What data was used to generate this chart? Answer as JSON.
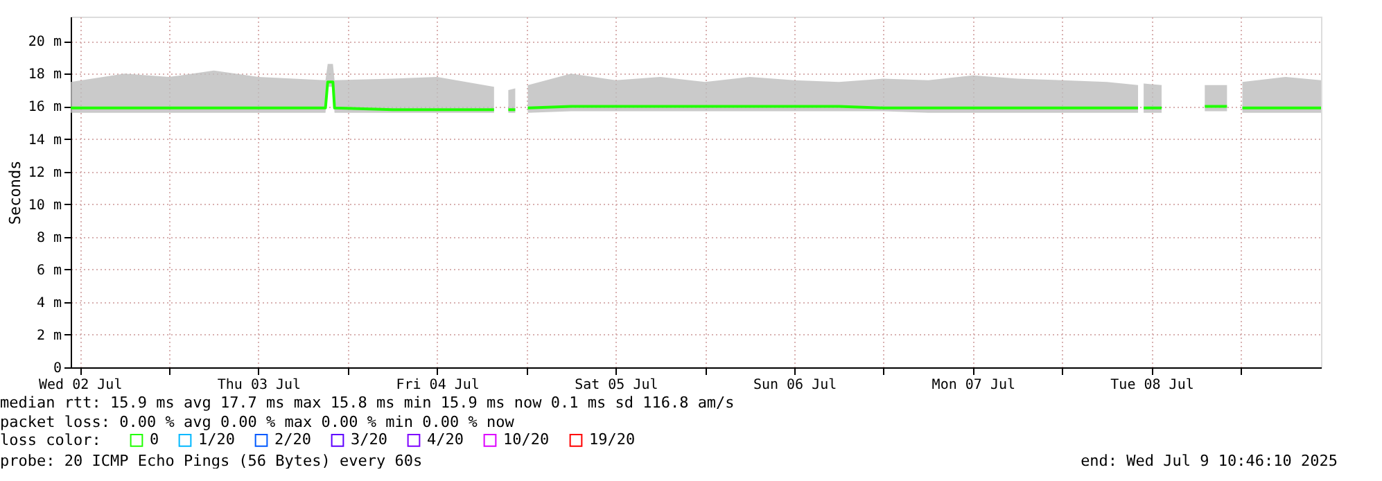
{
  "chart_data": {
    "type": "line",
    "ylabel": "Seconds",
    "xlim": [
      "2025-07-02T10:46",
      "2025-07-09T10:46"
    ],
    "xticks": [
      {
        "value": "2025-07-02T12:00",
        "label": "Wed 02 Jul"
      },
      {
        "value": "2025-07-03T00:00",
        "label": null
      },
      {
        "value": "2025-07-03T12:00",
        "label": "Thu 03 Jul"
      },
      {
        "value": "2025-07-04T00:00",
        "label": null
      },
      {
        "value": "2025-07-04T12:00",
        "label": "Fri 04 Jul"
      },
      {
        "value": "2025-07-05T00:00",
        "label": null
      },
      {
        "value": "2025-07-05T12:00",
        "label": "Sat 05 Jul"
      },
      {
        "value": "2025-07-06T00:00",
        "label": null
      },
      {
        "value": "2025-07-06T12:00",
        "label": "Sun 06 Jul"
      },
      {
        "value": "2025-07-07T00:00",
        "label": null
      },
      {
        "value": "2025-07-07T12:00",
        "label": "Mon 07 Jul"
      },
      {
        "value": "2025-07-08T00:00",
        "label": null
      },
      {
        "value": "2025-07-08T12:00",
        "label": "Tue 08 Jul"
      },
      {
        "value": "2025-07-09T00:00",
        "label": null
      }
    ],
    "ylim": [
      0,
      21.5
    ],
    "yticks": [
      0,
      {
        "value": 2,
        "label": "2 m"
      },
      {
        "value": 4,
        "label": "4 m"
      },
      {
        "value": 6,
        "label": "6 m"
      },
      {
        "value": 8,
        "label": "8 m"
      },
      {
        "value": 10,
        "label": "10 m"
      },
      {
        "value": 12,
        "label": "12 m"
      },
      {
        "value": 14,
        "label": "14 m"
      },
      {
        "value": 16,
        "label": "16 m"
      },
      {
        "value": 18,
        "label": "18 m"
      },
      {
        "value": 20,
        "label": "20 m"
      }
    ],
    "grid": true,
    "legend": "bottom",
    "legend_title": "loss color:",
    "x": [
      "2025-07-02T10:46",
      "2025-07-02T18:00",
      "2025-07-03T00:00",
      "2025-07-03T06:00",
      "2025-07-03T12:00",
      "2025-07-03T21:00",
      "2025-07-03T21:18",
      "2025-07-03T22:00",
      "2025-07-03T22:13",
      "2025-07-04T06:00",
      "2025-07-04T12:00",
      "2025-07-04T19:39",
      "2025-07-04T20:30",
      "2025-07-04T21:34",
      "2025-07-04T22:30",
      "2025-07-04T23:20",
      "2025-07-05T00:11",
      "2025-07-05T06:00",
      "2025-07-05T12:00",
      "2025-07-05T18:00",
      "2025-07-06T00:00",
      "2025-07-06T06:00",
      "2025-07-06T12:00",
      "2025-07-06T18:00",
      "2025-07-07T00:00",
      "2025-07-07T06:00",
      "2025-07-07T12:00",
      "2025-07-07T18:00",
      "2025-07-08T00:00",
      "2025-07-08T06:00",
      "2025-07-08T10:11",
      "2025-07-08T10:30",
      "2025-07-08T10:56",
      "2025-07-08T13:21",
      "2025-07-08T16:00",
      "2025-07-08T19:09",
      "2025-07-08T22:08",
      "2025-07-08T22:16",
      "2025-07-08T22:24",
      "2025-07-08T23:10",
      "2025-07-08T23:40",
      "2025-07-09T00:12",
      "2025-07-09T06:00",
      "2025-07-09T10:46"
    ],
    "series": [
      {
        "name": "0",
        "color": "#20ff00",
        "values": [
          15.9,
          15.9,
          15.9,
          15.9,
          15.9,
          15.9,
          17.5,
          17.5,
          15.9,
          15.8,
          15.8,
          15.8,
          null,
          15.8,
          15.8,
          null,
          15.9,
          16,
          16,
          16,
          16,
          16,
          16,
          16,
          15.9,
          15.9,
          15.9,
          15.9,
          15.9,
          15.9,
          15.9,
          null,
          15.9,
          15.9,
          null,
          16,
          16,
          null,
          null,
          null,
          null,
          15.9,
          15.9,
          15.9
        ],
        "lower": [
          15.6,
          15.6,
          15.6,
          15.6,
          15.6,
          15.6,
          17.2,
          17.2,
          15.6,
          15.6,
          15.6,
          15.6,
          null,
          15.6,
          15.6,
          null,
          15.6,
          15.7,
          15.7,
          15.7,
          15.7,
          15.7,
          15.7,
          15.7,
          15.7,
          15.6,
          15.6,
          15.6,
          15.6,
          15.6,
          15.6,
          null,
          15.6,
          15.6,
          null,
          15.7,
          15.7,
          null,
          null,
          null,
          null,
          15.6,
          15.6,
          15.6
        ],
        "upper": [
          17.5,
          18,
          17.8,
          18.2,
          17.8,
          17.6,
          18.6,
          18.6,
          17.6,
          17.7,
          17.8,
          17.2,
          null,
          17,
          17.1,
          null,
          17.3,
          18,
          17.6,
          17.8,
          17.5,
          17.8,
          17.6,
          17.5,
          17.7,
          17.6,
          17.9,
          17.7,
          17.6,
          17.5,
          17.3,
          null,
          17.4,
          17.3,
          null,
          17.3,
          17.3,
          null,
          null,
          null,
          null,
          17.5,
          17.8,
          17.6
        ]
      },
      {
        "name": "1/20",
        "color": "#00b8ff",
        "values": [
          null,
          null,
          null,
          null,
          null,
          null,
          null,
          null,
          null,
          null,
          null,
          null,
          null,
          null,
          null,
          null,
          null,
          null,
          null,
          null,
          null,
          null,
          null,
          null,
          null,
          null,
          null,
          null,
          null,
          null,
          null,
          null,
          null,
          null,
          null,
          null,
          null,
          null,
          null,
          null,
          null,
          null,
          null,
          null
        ]
      },
      {
        "name": "2/20",
        "color": "#0059ff",
        "values": [
          null,
          null,
          null,
          null,
          null,
          null,
          null,
          null,
          null,
          null,
          null,
          null,
          null,
          null,
          null,
          null,
          null,
          null,
          null,
          null,
          null,
          null,
          null,
          null,
          null,
          null,
          null,
          null,
          null,
          null,
          null,
          null,
          null,
          null,
          null,
          null,
          null,
          null,
          null,
          null,
          null,
          null,
          null,
          null
        ]
      },
      {
        "name": "3/20",
        "color": "#5e00ff",
        "values": [
          null,
          null,
          null,
          null,
          null,
          null,
          null,
          null,
          null,
          null,
          null,
          null,
          null,
          null,
          null,
          null,
          null,
          null,
          null,
          null,
          null,
          null,
          null,
          null,
          null,
          null,
          null,
          null,
          null,
          null,
          null,
          null,
          null,
          null,
          null,
          null,
          null,
          null,
          null,
          null,
          null,
          null,
          null,
          null
        ]
      },
      {
        "name": "4/20",
        "color": "#7e00ff",
        "values": [
          null,
          null,
          null,
          null,
          null,
          null,
          null,
          null,
          null,
          null,
          null,
          null,
          null,
          null,
          null,
          null,
          null,
          null,
          null,
          null,
          null,
          null,
          null,
          null,
          null,
          null,
          null,
          null,
          null,
          null,
          null,
          null,
          null,
          null,
          null,
          null,
          null,
          null,
          null,
          null,
          null,
          null,
          null,
          null
        ]
      },
      {
        "name": "10/20",
        "color": "#dd00ff",
        "values": [
          null,
          null,
          null,
          null,
          null,
          null,
          null,
          null,
          null,
          null,
          null,
          null,
          null,
          null,
          null,
          null,
          null,
          null,
          null,
          null,
          null,
          null,
          null,
          null,
          null,
          null,
          null,
          null,
          null,
          null,
          null,
          null,
          null,
          null,
          null,
          null,
          null,
          null,
          null,
          null,
          null,
          null,
          null,
          null
        ]
      },
      {
        "name": "19/20",
        "color": "#ff0000",
        "values": [
          null,
          null,
          null,
          null,
          null,
          null,
          null,
          null,
          null,
          null,
          null,
          null,
          null,
          null,
          null,
          null,
          null,
          null,
          null,
          null,
          null,
          null,
          null,
          null,
          null,
          null,
          null,
          null,
          null,
          null,
          null,
          null,
          null,
          null,
          null,
          null,
          null,
          null,
          null,
          null,
          null,
          null,
          null,
          null
        ]
      }
    ],
    "annotations": [
      "median rtt:  15.9 ms avg  17.7 ms max  15.8 ms min  15.9 ms now  0.1 ms sd  116.8   am/s",
      "packet loss: 0.00 % avg  0.00 % max  0.00 % min  0.00 % now",
      "probe:       20 ICMP Echo Pings (56 Bytes) every 60s",
      "end: Wed Jul  9 10:46:10 2025"
    ]
  }
}
